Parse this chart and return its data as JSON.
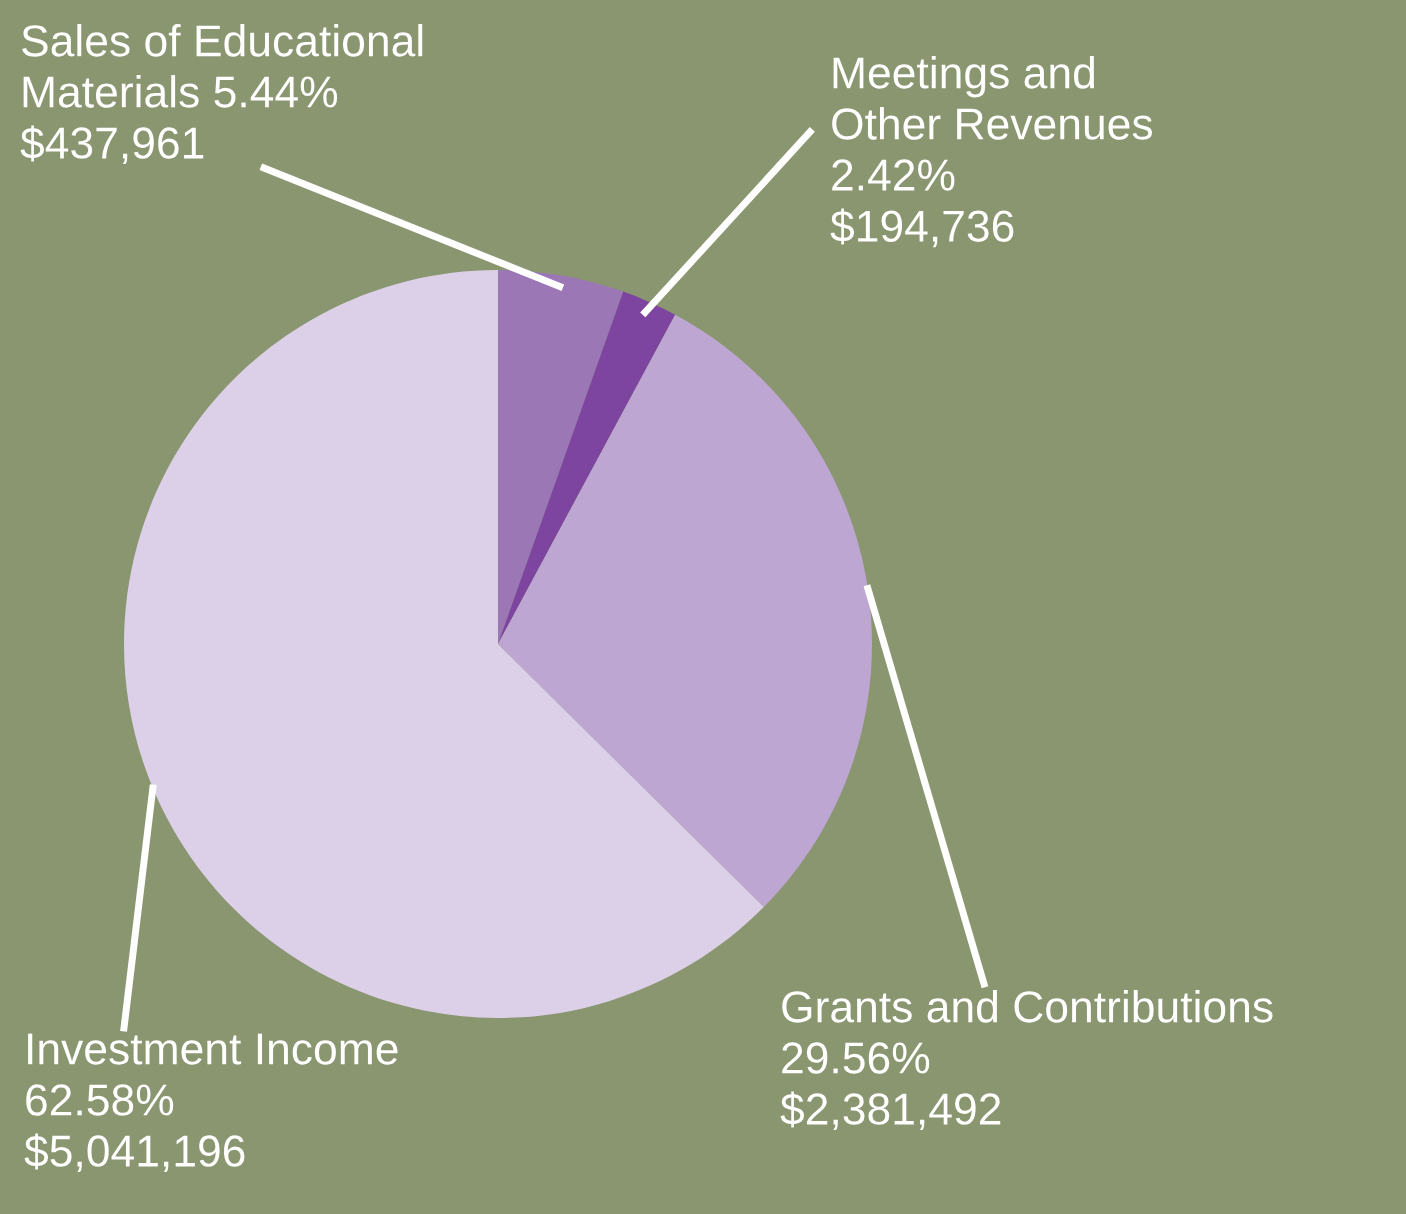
{
  "chart_data": {
    "type": "pie",
    "categories": [
      "Sales of Educational Materials",
      "Meetings and Other Revenues",
      "Grants and Contributions",
      "Investment Income"
    ],
    "values": [
      437961,
      194736,
      2381492,
      5041196
    ],
    "value_labels": [
      "5.44% $437,961",
      "2.42% $194,736",
      "29.56% $2,381,492",
      "62.58% $5,041,196"
    ],
    "colors": [
      "#9b77b5",
      "#7d45a0",
      "#bea6d2",
      "#dcd0e8"
    ],
    "legend": false
  }
}
